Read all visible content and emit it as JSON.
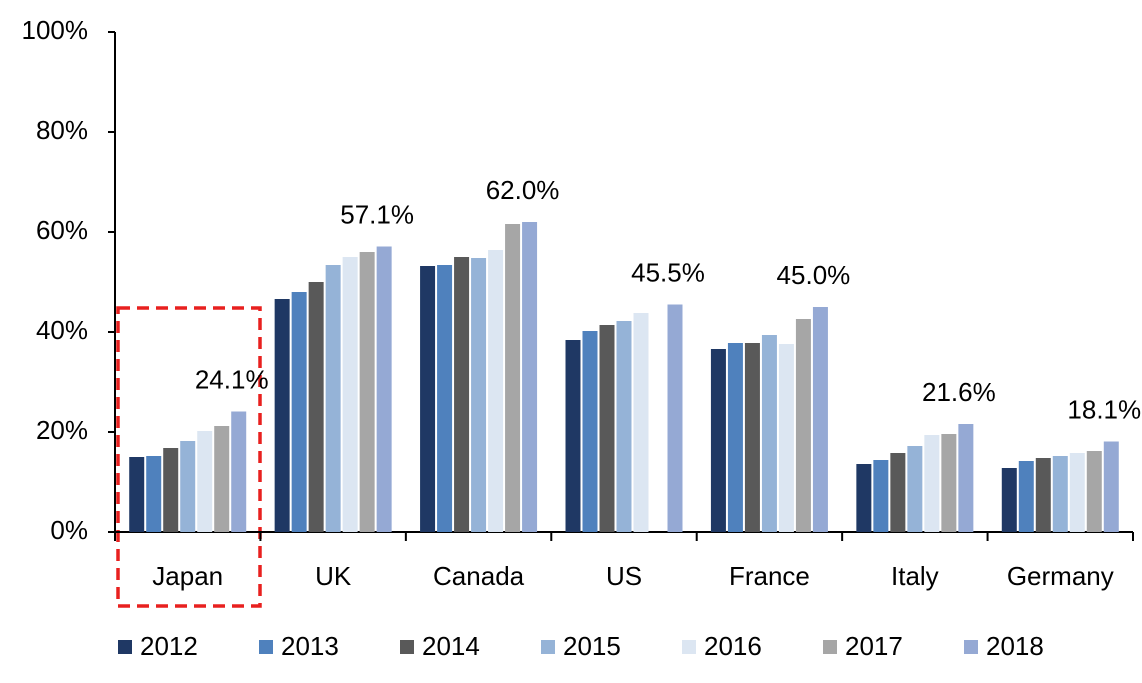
{
  "chart_data": {
    "type": "bar",
    "categories": [
      "Japan",
      "UK",
      "Canada",
      "US",
      "France",
      "Italy",
      "Germany"
    ],
    "series": [
      {
        "name": "2012",
        "color": "#1f3864",
        "values": [
          15.0,
          46.6,
          53.2,
          38.4,
          36.6,
          13.6,
          12.8
        ]
      },
      {
        "name": "2013",
        "color": "#4f81bd",
        "values": [
          15.2,
          48.0,
          53.4,
          40.2,
          37.8,
          14.4,
          14.2
        ]
      },
      {
        "name": "2014",
        "color": "#595959",
        "values": [
          16.8,
          50.0,
          55.0,
          41.4,
          37.8,
          15.8,
          14.8
        ]
      },
      {
        "name": "2015",
        "color": "#95b3d7",
        "values": [
          18.2,
          53.4,
          54.8,
          42.2,
          39.4,
          17.2,
          15.2
        ]
      },
      {
        "name": "2016",
        "color": "#dce6f2",
        "values": [
          20.2,
          55.0,
          56.4,
          43.8,
          37.6,
          19.4,
          15.8
        ]
      },
      {
        "name": "2017",
        "color": "#a6a6a6",
        "values": [
          21.2,
          56.0,
          61.6,
          null,
          42.6,
          19.6,
          16.2
        ]
      },
      {
        "name": "2018",
        "color": "#95a9d4",
        "values": [
          24.1,
          57.1,
          62.0,
          45.5,
          45.0,
          21.6,
          18.1
        ],
        "value_labels": [
          "24.1%",
          "57.1%",
          "62.0%",
          "45.5%",
          "45.0%",
          "21.6%",
          "18.1%"
        ]
      }
    ],
    "ylim": [
      0,
      100
    ],
    "yticks": [
      {
        "value": 0,
        "label": "0%"
      },
      {
        "value": 20,
        "label": "20%"
      },
      {
        "value": 40,
        "label": "40%"
      },
      {
        "value": 60,
        "label": "60%"
      },
      {
        "value": 80,
        "label": "80%"
      },
      {
        "value": 100,
        "label": "100%"
      }
    ],
    "grid": false
  }
}
